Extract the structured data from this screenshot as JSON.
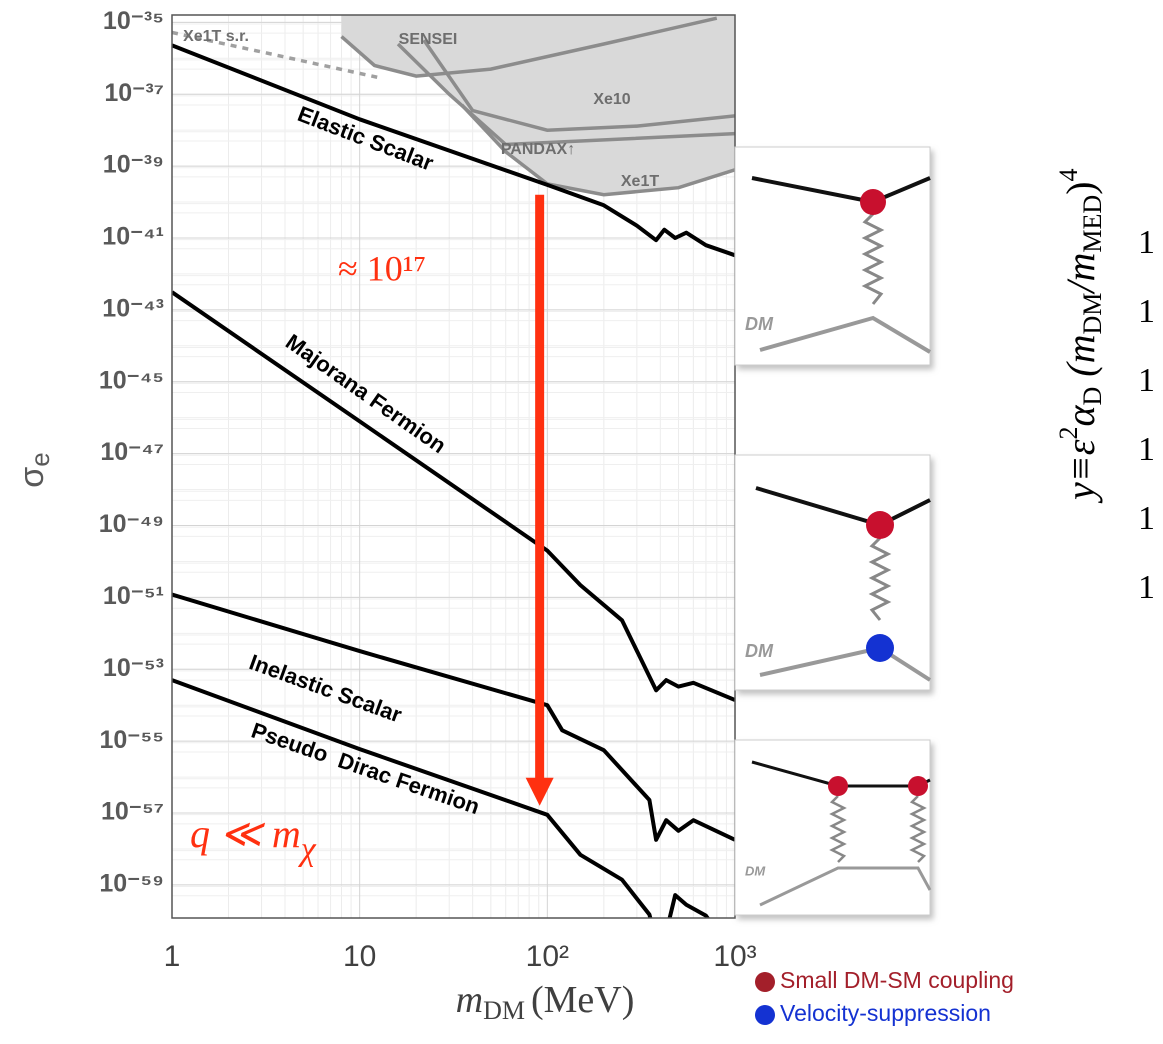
{
  "chart_data": {
    "type": "line",
    "x_label": {
      "main": "m",
      "sub": "DM",
      "unit": "(MeV)"
    },
    "y_label": {
      "main": "σ",
      "sub": "e"
    },
    "xscale": "log",
    "yscale": "log",
    "grid": true,
    "xlim": [
      1,
      1000
    ],
    "ylim": [
      1.2e-60,
      1.6e-35
    ],
    "xticks": [
      1,
      10,
      {
        "value": 100,
        "label": "10²"
      },
      {
        "value": 1000,
        "label": "10³"
      }
    ],
    "yticks": [
      {
        "value": 1e-35,
        "label": "10⁻³⁵"
      },
      {
        "value": 1e-37,
        "label": "10⁻³⁷"
      },
      {
        "value": 1e-39,
        "label": "10⁻³⁹"
      },
      {
        "value": 1e-41,
        "label": "10⁻⁴¹"
      },
      {
        "value": 1e-43,
        "label": "10⁻⁴³"
      },
      {
        "value": 1e-45,
        "label": "10⁻⁴⁵"
      },
      {
        "value": 1e-47,
        "label": "10⁻⁴⁷"
      },
      {
        "value": 1e-49,
        "label": "10⁻⁴⁹"
      },
      {
        "value": 1e-51,
        "label": "10⁻⁵¹"
      },
      {
        "value": 1e-53,
        "label": "10⁻⁵³"
      },
      {
        "value": 1e-55,
        "label": "10⁻⁵⁵"
      },
      {
        "value": 1e-57,
        "label": "10⁻⁵⁷"
      },
      {
        "value": 1e-59,
        "label": "10⁻⁵⁹"
      }
    ],
    "exclusions": [
      {
        "name": "Xe1T s.r.",
        "color": "#a0a0a0",
        "dashed": true,
        "x": [
          1,
          3,
          13
        ],
        "values": [
          5.2e-36,
          1.5e-36,
          2.8e-37
        ]
      },
      {
        "name": "SENSEI",
        "color": "#8c8c8c",
        "x": [
          8,
          12,
          20,
          50,
          200,
          800
        ],
        "values": [
          4e-36,
          6.3e-37,
          3.2e-37,
          5e-37,
          2.5e-36,
          1.3e-35
        ]
      },
      {
        "name": "Xe10",
        "color": "#8c8c8c",
        "x": [
          22,
          40,
          100,
          300,
          1000
        ],
        "values": [
          3.2e-36,
          3.5e-38,
          1e-38,
          1.3e-38,
          2.5e-38
        ]
      },
      {
        "name": "PANDAX↑",
        "color": "#8c8c8c",
        "x": [
          16,
          30,
          60,
          150,
          1000
        ],
        "values": [
          2.5e-36,
          1e-37,
          4e-39,
          5e-39,
          8e-39
        ]
      },
      {
        "name": "Xe1T",
        "color": "#8c8c8c",
        "x": [
          35,
          60,
          100,
          200,
          500,
          1000
        ],
        "values": [
          5e-38,
          2.5e-39,
          3.2e-40,
          1.6e-40,
          2.5e-40,
          7.9e-40
        ]
      }
    ],
    "series": [
      {
        "name": "Elastic Scalar",
        "color": "#000000",
        "x": [
          1,
          10,
          100,
          200,
          300,
          380,
          420,
          480,
          550,
          700,
          1000
        ],
        "values": [
          2.3e-36,
          2e-38,
          3e-40,
          8.1e-41,
          2.2e-41,
          8.7e-42,
          1.7e-41,
          1e-41,
          1.4e-41,
          6.3e-42,
          3.3e-42
        ]
      },
      {
        "name": "Majorana Fermion",
        "color": "#000000",
        "x": [
          1,
          10,
          100,
          150,
          250,
          380,
          430,
          500,
          600,
          1000
        ],
        "values": [
          3.1e-43,
          7.9e-47,
          2e-50,
          2.2e-51,
          2.3e-52,
          2.6e-54,
          5e-54,
          3.3e-54,
          4.2e-54,
          1.4e-54
        ]
      },
      {
        "name": "Inelastic Scalar",
        "color": "#000000",
        "x": [
          1,
          10,
          100,
          120,
          200,
          350,
          380,
          430,
          500,
          600,
          1000
        ],
        "values": [
          1.2e-51,
          3.2e-53,
          1e-54,
          2e-55,
          5.6e-56,
          2.3e-57,
          1.8e-58,
          6.3e-58,
          3.2e-58,
          6.3e-58,
          1.8e-58
        ]
      },
      {
        "name": "Pseudo  Dirac Fermion",
        "color": "#000000",
        "x": [
          1,
          10,
          100,
          150,
          250,
          350,
          400,
          480,
          550,
          700,
          1000
        ],
        "values": [
          5e-54,
          6e-56,
          8.9e-58,
          6.9e-59,
          1.4e-59,
          1.5e-60,
          1e-61,
          5.2e-60,
          2.8e-60,
          1.4e-60,
          1e-61
        ]
      }
    ],
    "arrow": {
      "x": 91,
      "y_start": 1.6e-40,
      "y_end": 1.6e-57,
      "color": "#ff3010",
      "label": "≈ 10¹⁷"
    },
    "regime": {
      "main": "q ≪ m",
      "sub": "χ"
    },
    "diagrams": [
      {
        "label": "DM"
      },
      {
        "label": "DM"
      },
      {
        "label": "DM"
      }
    ],
    "legend": [
      {
        "name": "Small DM-SM coupling",
        "color": "#a31f2a"
      },
      {
        "name": "Velocity-suppression",
        "color": "#1432d2"
      }
    ],
    "formula": [
      "y≡ε",
      "2",
      "α",
      "D",
      " (m",
      "DM",
      "/m",
      "MED",
      ")",
      "4"
    ],
    "cropped_labels": [
      "1",
      "1",
      "1",
      "1",
      "1",
      "1"
    ]
  }
}
